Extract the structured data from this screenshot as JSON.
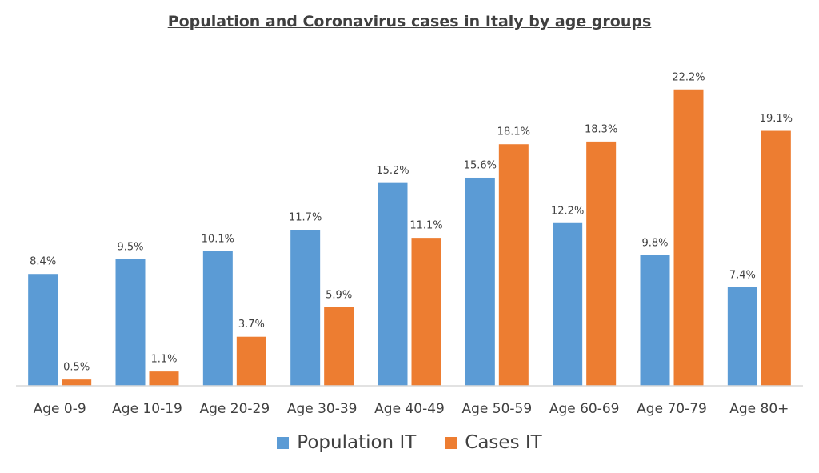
{
  "chart_data": {
    "type": "bar",
    "title": "Population and Coronavirus cases in Italy by age groups",
    "categories": [
      "Age 0-9",
      "Age 10-19",
      "Age 20-29",
      "Age 30-39",
      "Age 40-49",
      "Age 50-59",
      "Age 60-69",
      "Age 70-79",
      "Age 80+"
    ],
    "series": [
      {
        "name": "Population IT",
        "color": "#5B9BD5",
        "values": [
          8.4,
          9.5,
          10.1,
          11.7,
          15.2,
          15.6,
          12.2,
          9.8,
          7.4
        ],
        "labels": [
          "8.4%",
          "9.5%",
          "10.1%",
          "11.7%",
          "15.2%",
          "15.6%",
          "12.2%",
          "9.8%",
          "7.4%"
        ]
      },
      {
        "name": "Cases IT",
        "color": "#ED7D31",
        "values": [
          0.5,
          1.1,
          3.7,
          5.9,
          11.1,
          18.1,
          18.3,
          22.2,
          19.1
        ],
        "labels": [
          "0.5%",
          "1.1%",
          "3.7%",
          "5.9%",
          "11.1%",
          "18.1%",
          "18.3%",
          "22.2%",
          "19.1%"
        ]
      }
    ],
    "xlabel": "",
    "ylabel": "",
    "ylim": [
      0,
      24
    ],
    "grid": false,
    "legend": "bottom"
  }
}
